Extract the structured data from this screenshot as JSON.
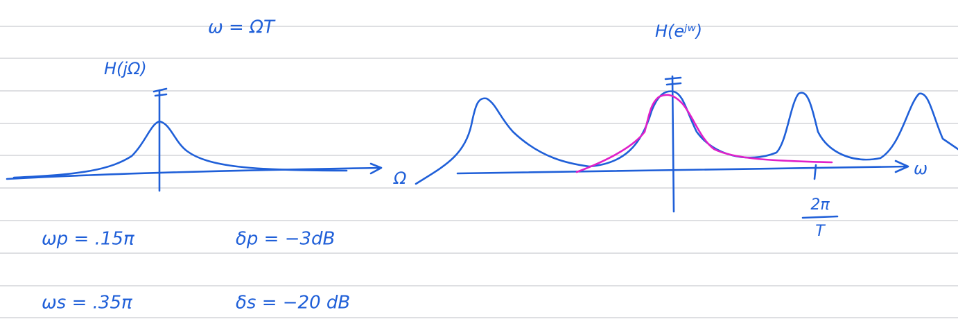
{
  "notes": {
    "equation": "ω = ΩT",
    "left_graph": {
      "label": "H(jΩ)",
      "axis": "Ω"
    },
    "right_graph": {
      "label": "H(eʲʷ)",
      "axis": "ω",
      "tick_numerator": "2π",
      "tick_denominator": "T"
    },
    "specs": [
      "ωp = .15π",
      "δp = −3dB",
      "ωs = .35π",
      "δs = −20 dB"
    ]
  }
}
